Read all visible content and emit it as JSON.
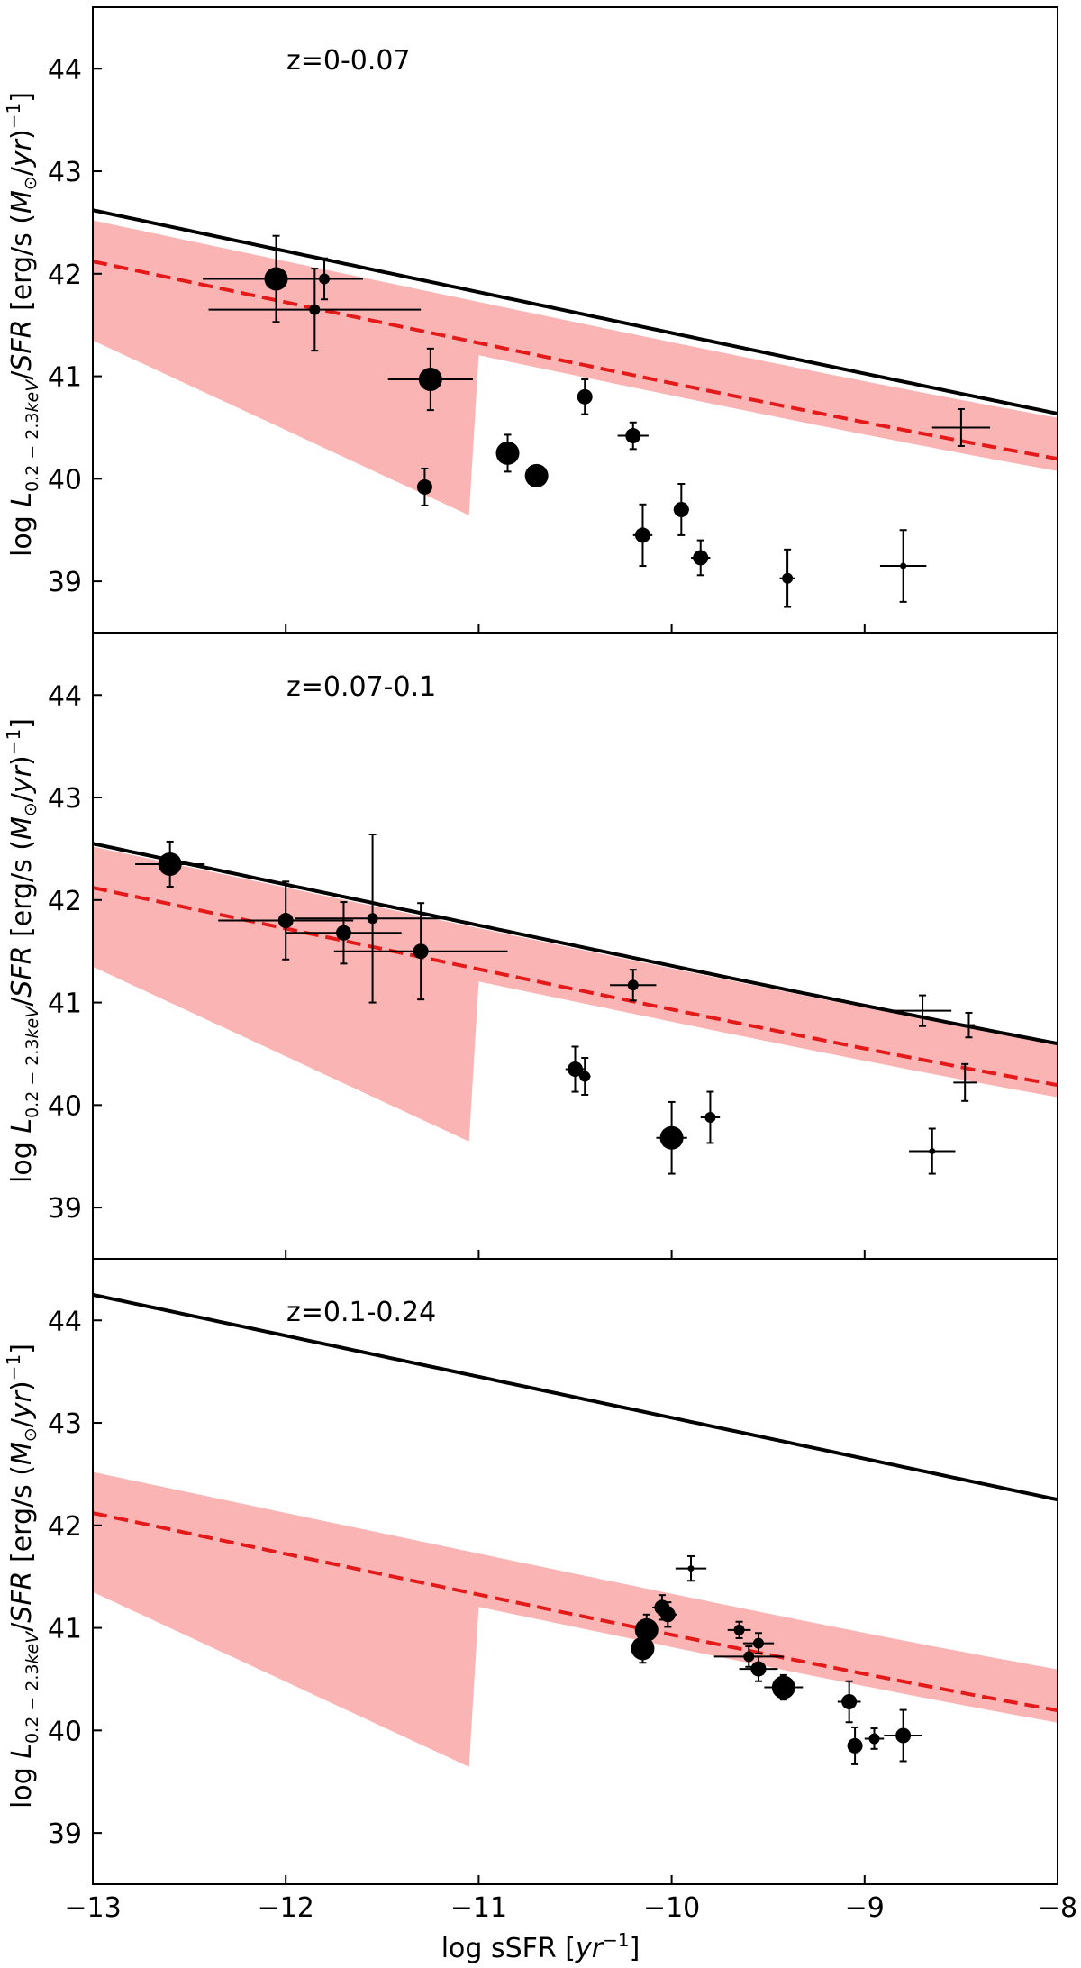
{
  "chart_data": {
    "type": "scatter",
    "xlabel": "log sSFR [yr−1]",
    "ylabel": "log L0.2−2.3keV/SFR [erg/s (M⊙/yr)−1]",
    "xlim": [
      -13,
      -8
    ],
    "ylim": [
      38.5,
      44.6
    ],
    "xticks": [
      -13,
      -12,
      -11,
      -10,
      -9,
      -8
    ],
    "xtick_labels": [
      "−13",
      "−12",
      "−11",
      "−10",
      "−9",
      "−8"
    ],
    "yticks": [
      39,
      40,
      41,
      42,
      43,
      44
    ],
    "ytick_labels": [
      "39",
      "40",
      "41",
      "42",
      "43",
      "44"
    ],
    "colors": {
      "band": "#fbb4b4",
      "model": "#e41a1a",
      "fit": "#000000",
      "points": "#000000"
    },
    "panels": [
      {
        "label": "z=0-0.07",
        "solid_fit": {
          "A": 39.2,
          "B": 42.62,
          "x0": -13,
          "slope": -0.4
        },
        "points": [
          {
            "x": -12.05,
            "y": 41.95,
            "xerr": 0.38,
            "yerr": 0.42,
            "size": "large"
          },
          {
            "x": -11.85,
            "y": 41.65,
            "xerr": 0.55,
            "yerr": 0.4,
            "size": "small"
          },
          {
            "x": -11.8,
            "y": 41.95,
            "xerr": 0.2,
            "yerr": 0.2,
            "size": "small"
          },
          {
            "x": -11.25,
            "y": 40.97,
            "xerr": 0.22,
            "yerr": 0.3,
            "size": "large"
          },
          {
            "x": -11.28,
            "y": 39.92,
            "xerr": 0.03,
            "yerr": 0.18,
            "size": "medium"
          },
          {
            "x": -10.85,
            "y": 40.25,
            "xerr": 0.05,
            "yerr": 0.18,
            "size": "large"
          },
          {
            "x": -10.7,
            "y": 40.03,
            "xerr": 0.04,
            "yerr": 0.08,
            "size": "large"
          },
          {
            "x": -10.45,
            "y": 40.8,
            "xerr": 0.0,
            "yerr": 0.17,
            "size": "medium"
          },
          {
            "x": -10.2,
            "y": 40.42,
            "xerr": 0.08,
            "yerr": 0.13,
            "size": "medium"
          },
          {
            "x": -10.15,
            "y": 39.45,
            "xerr": 0.05,
            "yerr": 0.3,
            "size": "medium"
          },
          {
            "x": -9.95,
            "y": 39.7,
            "xerr": 0.04,
            "yerr": 0.25,
            "size": "medium"
          },
          {
            "x": -9.85,
            "y": 39.23,
            "xerr": 0.05,
            "yerr": 0.17,
            "size": "medium"
          },
          {
            "x": -9.4,
            "y": 39.03,
            "xerr": 0.04,
            "yerr": 0.28,
            "size": "small"
          },
          {
            "x": -8.8,
            "y": 39.15,
            "xerr": 0.12,
            "yerr": 0.35,
            "size": "tiny"
          },
          {
            "x": -8.5,
            "y": 40.5,
            "xerr": 0.15,
            "yerr": 0.18,
            "size": "none"
          }
        ]
      },
      {
        "label": "z=0.07-0.1",
        "solid_fit": {
          "A": 39.63,
          "B": 42.55,
          "x0": -13,
          "slope": -0.4
        },
        "points": [
          {
            "x": -12.6,
            "y": 42.35,
            "xerr": 0.18,
            "yerr": 0.22,
            "size": "large"
          },
          {
            "x": -12.0,
            "y": 41.8,
            "xerr": 0.35,
            "yerr": 0.38,
            "size": "medium"
          },
          {
            "x": -11.7,
            "y": 41.68,
            "xerr": 0.3,
            "yerr": 0.3,
            "size": "medium"
          },
          {
            "x": -11.55,
            "y": 41.82,
            "xerr": 0.4,
            "yerr": 0.82,
            "size": "small"
          },
          {
            "x": -11.3,
            "y": 41.5,
            "xerr": 0.45,
            "yerr": 0.47,
            "size": "medium"
          },
          {
            "x": -10.5,
            "y": 40.35,
            "xerr": 0.05,
            "yerr": 0.22,
            "size": "medium"
          },
          {
            "x": -10.45,
            "y": 40.28,
            "xerr": 0.03,
            "yerr": 0.18,
            "size": "small"
          },
          {
            "x": -10.2,
            "y": 41.17,
            "xerr": 0.12,
            "yerr": 0.15,
            "size": "small"
          },
          {
            "x": -10.0,
            "y": 39.68,
            "xerr": 0.08,
            "yerr": 0.35,
            "size": "large"
          },
          {
            "x": -9.8,
            "y": 39.88,
            "xerr": 0.05,
            "yerr": 0.25,
            "size": "small"
          },
          {
            "x": -8.7,
            "y": 40.92,
            "xerr": 0.15,
            "yerr": 0.15,
            "size": "none"
          },
          {
            "x": -8.65,
            "y": 39.55,
            "xerr": 0.12,
            "yerr": 0.22,
            "size": "tiny"
          },
          {
            "x": -8.48,
            "y": 40.22,
            "xerr": 0.06,
            "yerr": 0.18,
            "size": "none"
          },
          {
            "x": -8.46,
            "y": 40.78,
            "xerr": 0.03,
            "yerr": 0.12,
            "size": "none"
          }
        ]
      },
      {
        "label": "z=0.1-0.24",
        "solid_fit": {
          "A": 39.62,
          "B": 44.25,
          "x0": -13,
          "slope": -0.4
        },
        "points": [
          {
            "x": -10.15,
            "y": 40.8,
            "xerr": 0.03,
            "yerr": 0.14,
            "size": "large"
          },
          {
            "x": -10.13,
            "y": 40.98,
            "xerr": 0.03,
            "yerr": 0.15,
            "size": "large"
          },
          {
            "x": -10.05,
            "y": 41.2,
            "xerr": 0.05,
            "yerr": 0.12,
            "size": "medium"
          },
          {
            "x": -10.02,
            "y": 41.13,
            "xerr": 0.05,
            "yerr": 0.12,
            "size": "medium"
          },
          {
            "x": -9.9,
            "y": 41.58,
            "xerr": 0.08,
            "yerr": 0.12,
            "size": "tiny"
          },
          {
            "x": -9.65,
            "y": 40.98,
            "xerr": 0.06,
            "yerr": 0.08,
            "size": "small"
          },
          {
            "x": -9.6,
            "y": 40.72,
            "xerr": 0.18,
            "yerr": 0.1,
            "size": "small"
          },
          {
            "x": -9.55,
            "y": 40.85,
            "xerr": 0.08,
            "yerr": 0.1,
            "size": "small"
          },
          {
            "x": -9.55,
            "y": 40.6,
            "xerr": 0.1,
            "yerr": 0.12,
            "size": "medium"
          },
          {
            "x": -9.42,
            "y": 40.42,
            "xerr": 0.1,
            "yerr": 0.12,
            "size": "large"
          },
          {
            "x": -9.08,
            "y": 40.28,
            "xerr": 0.06,
            "yerr": 0.2,
            "size": "medium"
          },
          {
            "x": -9.05,
            "y": 39.85,
            "xerr": 0.03,
            "yerr": 0.18,
            "size": "medium"
          },
          {
            "x": -8.95,
            "y": 39.92,
            "xerr": 0.05,
            "yerr": 0.1,
            "size": "small"
          },
          {
            "x": -8.8,
            "y": 39.95,
            "xerr": 0.1,
            "yerr": 0.25,
            "size": "medium"
          }
        ]
      }
    ],
    "model": {
      "A": 39.4,
      "B": 42.12,
      "x0": -13,
      "slope": -0.4,
      "band_high_offset": 0.4,
      "band_low_offset": 0.12,
      "band_low_start": 41.35
    }
  }
}
